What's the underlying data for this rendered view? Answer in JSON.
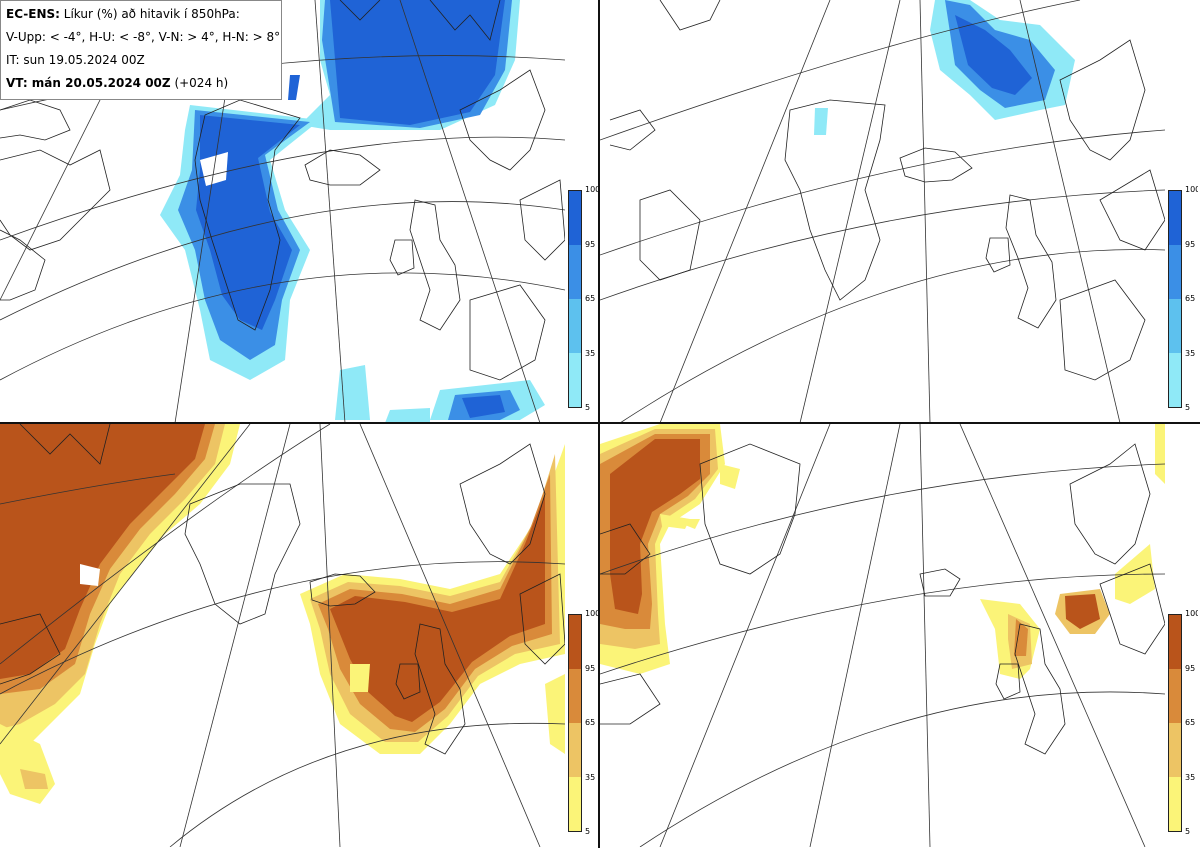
{
  "legend": {
    "model": "EC-ENS:",
    "title": "Líkur (%) að hitavik í 850hPa:",
    "thresholds": "V-Upp: < -4°, H-U: < -8°, V-N: > 4°, H-N: > 8°",
    "init": "IT: sun 19.05.2024 00Z",
    "valid_label": "VT: mán 20.05.2024 00Z",
    "lead": "(+024 h)"
  },
  "colorbars": {
    "cold": {
      "ticks": [
        "100",
        "95",
        "65",
        "35",
        "5"
      ],
      "colors": [
        "#1f63d6",
        "#3b8fe6",
        "#5dc1ee",
        "#8fe9f7"
      ]
    },
    "warm": {
      "ticks": [
        "100",
        "95",
        "65",
        "35",
        "5"
      ],
      "colors": [
        "#b9541b",
        "#d98a3a",
        "#edc464",
        "#fbf478"
      ]
    }
  },
  "panels": [
    {
      "name": "V-Upp",
      "scheme": "cold"
    },
    {
      "name": "H-U",
      "scheme": "cold"
    },
    {
      "name": "V-N",
      "scheme": "warm"
    },
    {
      "name": "H-N",
      "scheme": "warm"
    }
  ]
}
